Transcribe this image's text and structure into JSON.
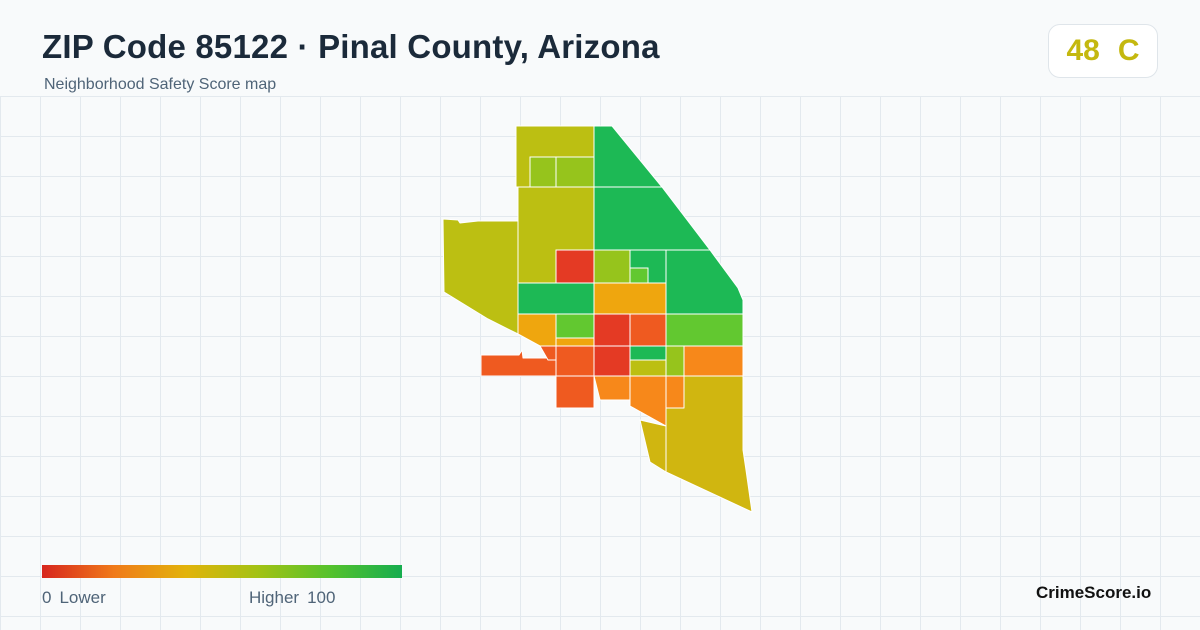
{
  "header": {
    "title": "ZIP Code 85122 · Pinal County, Arizona",
    "subtitle": "Neighborhood Safety Score map"
  },
  "score": {
    "value": "48",
    "grade": "C",
    "color": "#c4b80f"
  },
  "legend": {
    "min": "0",
    "min_label": "Lower",
    "max_label": "Higher",
    "max": "100",
    "colors": [
      "#d7261e",
      "#f07a1a",
      "#e2b30b",
      "#a3c214",
      "#55c22c",
      "#16ad4f"
    ]
  },
  "palette": {
    "dark_green": "#1db955",
    "light_green": "#62c830",
    "yellow_green": "#96c41c",
    "olive": "#bcbf12",
    "mustard": "#d0b610",
    "amber": "#efa60e",
    "orange": "#f7881a",
    "red_orange": "#ef5a20",
    "red": "#e43a24"
  },
  "brand": "CrimeScore.io"
}
